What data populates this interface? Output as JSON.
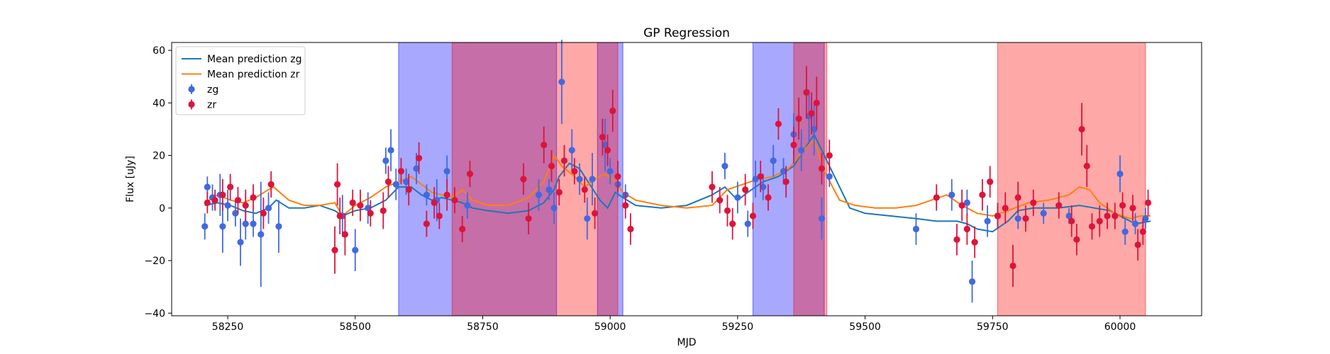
{
  "chart_data": {
    "type": "scatter",
    "title": "GP Regression",
    "xlabel": "MJD",
    "ylabel": "Flux [uJy]",
    "xlim": [
      58140,
      60160
    ],
    "ylim": [
      -41,
      63
    ],
    "x_ticks": [
      58250,
      58500,
      58750,
      59000,
      59250,
      59500,
      59750,
      60000
    ],
    "y_ticks": [
      -40,
      -20,
      0,
      20,
      40,
      60
    ],
    "grid": false,
    "legend_position": "top-left",
    "legend": [
      {
        "label": "Mean prediction zg",
        "kind": "line",
        "color": "#1f77b4"
      },
      {
        "label": "Mean prediction zr",
        "kind": "line",
        "color": "#ff7f0e"
      },
      {
        "label": "zg",
        "kind": "errorbar",
        "color": "#4169e1"
      },
      {
        "label": "zr",
        "kind": "errorbar",
        "color": "#dc143c"
      }
    ],
    "shaded_regions": [
      {
        "band": "zg",
        "color": "#0000ff",
        "opacity": 0.34,
        "x": [
          58585,
          58895
        ]
      },
      {
        "band": "zg",
        "color": "#0000ff",
        "opacity": 0.34,
        "x": [
          58975,
          59025
        ]
      },
      {
        "band": "zg",
        "color": "#0000ff",
        "opacity": 0.34,
        "x": [
          59280,
          59420
        ]
      },
      {
        "band": "zr",
        "color": "#ff0000",
        "opacity": 0.34,
        "x": [
          58690,
          59015
        ]
      },
      {
        "band": "zr",
        "color": "#ff0000",
        "opacity": 0.34,
        "x": [
          59360,
          59425
        ]
      },
      {
        "band": "zr",
        "color": "#ff0000",
        "opacity": 0.34,
        "x": [
          59760,
          60050
        ]
      }
    ],
    "series": [
      {
        "name": "Mean prediction zg",
        "type": "line",
        "color": "#1f77b4",
        "x": [
          58205,
          58230,
          58255,
          58280,
          58305,
          58330,
          58345,
          58370,
          58400,
          58430,
          58460,
          58475,
          58500,
          58530,
          58560,
          58585,
          58610,
          58630,
          58650,
          58670,
          58690,
          58710,
          58730,
          58760,
          58800,
          58840,
          58870,
          58890,
          58900,
          58920,
          58940,
          58960,
          58980,
          58995,
          59010,
          59025,
          59050,
          59100,
          59150,
          59200,
          59225,
          59250,
          59270,
          59300,
          59330,
          59360,
          59380,
          59400,
          59420,
          59440,
          59470,
          59500,
          59550,
          59600,
          59640,
          59680,
          59700,
          59720,
          59750,
          59780,
          59800,
          59830,
          59880,
          59920,
          59950,
          59980,
          60010,
          60030,
          60060
        ],
        "y": [
          1,
          2,
          1,
          -1,
          -2,
          0,
          3,
          0,
          0,
          1,
          -1,
          -3,
          -1,
          0,
          3,
          8,
          8,
          5,
          3,
          4,
          3,
          2,
          0,
          -1,
          -2,
          -1,
          2,
          7,
          12,
          17,
          15,
          9,
          3,
          0,
          6,
          4,
          1,
          0,
          1,
          5,
          8,
          3,
          6,
          10,
          12,
          16,
          22,
          28,
          20,
          12,
          0,
          -2,
          -3,
          -4,
          -5,
          -5,
          -6,
          -8,
          -9,
          -5,
          -1,
          0,
          0,
          1,
          0,
          -1,
          -4,
          -6,
          -5
        ]
      },
      {
        "name": "Mean prediction zr",
        "type": "line",
        "color": "#ff7f0e",
        "x": [
          58205,
          58230,
          58255,
          58280,
          58305,
          58330,
          58340,
          58370,
          58400,
          58430,
          58460,
          58475,
          58500,
          58530,
          58560,
          58585,
          58610,
          58630,
          58650,
          58670,
          58690,
          58710,
          58730,
          58760,
          58800,
          58840,
          58870,
          58890,
          58905,
          58930,
          58950,
          58970,
          58990,
          59010,
          59025,
          59050,
          59100,
          59150,
          59200,
          59230,
          59260,
          59290,
          59320,
          59350,
          59380,
          59400,
          59420,
          59450,
          59480,
          59520,
          59560,
          59600,
          59630,
          59660,
          59690,
          59720,
          59750,
          59780,
          59820,
          59860,
          59900,
          59920,
          59940,
          59960,
          59990,
          60020,
          60040,
          60060
        ],
        "y": [
          2,
          5,
          3,
          2,
          4,
          7,
          8,
          3,
          1,
          1,
          2,
          -3,
          1,
          4,
          8,
          10,
          12,
          9,
          6,
          5,
          4,
          7,
          3,
          1,
          1,
          4,
          10,
          20,
          16,
          12,
          8,
          11,
          13,
          10,
          6,
          3,
          1,
          0,
          1,
          7,
          9,
          11,
          12,
          15,
          22,
          26,
          14,
          3,
          1,
          0,
          0,
          1,
          3,
          5,
          1,
          -2,
          -3,
          -1,
          2,
          3,
          5,
          8,
          7,
          2,
          -2,
          -4,
          -3,
          -3
        ]
      },
      {
        "name": "zg",
        "type": "errorbar",
        "color": "#4169e1",
        "points": [
          [
            58205,
            -7,
            5
          ],
          [
            58210,
            8,
            4
          ],
          [
            58220,
            4,
            5
          ],
          [
            58235,
            5,
            8
          ],
          [
            58240,
            -7,
            10
          ],
          [
            58250,
            1,
            6
          ],
          [
            58265,
            -2,
            5
          ],
          [
            58275,
            -13,
            9
          ],
          [
            58285,
            -6,
            6
          ],
          [
            58300,
            -6,
            5
          ],
          [
            58315,
            -10,
            20
          ],
          [
            58330,
            0,
            6
          ],
          [
            58350,
            -7,
            10
          ],
          [
            58475,
            -3,
            8
          ],
          [
            58500,
            -16,
            8
          ],
          [
            58525,
            0,
            6
          ],
          [
            58560,
            18,
            5
          ],
          [
            58570,
            22,
            8
          ],
          [
            58580,
            9,
            6
          ],
          [
            58600,
            10,
            5
          ],
          [
            58620,
            15,
            6
          ],
          [
            58640,
            5,
            4
          ],
          [
            58660,
            3,
            8
          ],
          [
            58680,
            14,
            6
          ],
          [
            58720,
            1,
            5
          ],
          [
            58860,
            5,
            6
          ],
          [
            58880,
            7,
            4
          ],
          [
            58890,
            0,
            6
          ],
          [
            58905,
            48,
            16
          ],
          [
            58925,
            22,
            8
          ],
          [
            58940,
            11,
            6
          ],
          [
            58955,
            -4,
            8
          ],
          [
            58965,
            11,
            10
          ],
          [
            58990,
            24,
            10
          ],
          [
            59000,
            14,
            5
          ],
          [
            59015,
            9,
            5
          ],
          [
            59030,
            5,
            4
          ],
          [
            59225,
            16,
            5
          ],
          [
            59250,
            4,
            6
          ],
          [
            59270,
            -6,
            5
          ],
          [
            59285,
            11,
            7
          ],
          [
            59300,
            8,
            5
          ],
          [
            59320,
            18,
            6
          ],
          [
            59340,
            14,
            5
          ],
          [
            59360,
            28,
            8
          ],
          [
            59375,
            22,
            8
          ],
          [
            59390,
            35,
            10
          ],
          [
            59400,
            30,
            10
          ],
          [
            59415,
            -4,
            8
          ],
          [
            59430,
            12,
            4
          ],
          [
            59600,
            -8,
            6
          ],
          [
            59670,
            5,
            6
          ],
          [
            59700,
            2,
            5
          ],
          [
            59710,
            -28,
            8
          ],
          [
            59740,
            -5,
            6
          ],
          [
            59760,
            -3,
            4
          ],
          [
            59800,
            -4,
            4
          ],
          [
            59850,
            -2,
            4
          ],
          [
            59900,
            -3,
            3
          ],
          [
            60000,
            13,
            7
          ],
          [
            60010,
            -9,
            5
          ],
          [
            60030,
            -6,
            4
          ],
          [
            60050,
            -4,
            4
          ]
        ]
      },
      {
        "name": "zr",
        "type": "errorbar",
        "color": "#dc143c",
        "points": [
          [
            58210,
            2,
            4
          ],
          [
            58225,
            3,
            4
          ],
          [
            58240,
            5,
            6
          ],
          [
            58255,
            8,
            5
          ],
          [
            58270,
            3,
            5
          ],
          [
            58285,
            1,
            6
          ],
          [
            58300,
            4,
            5
          ],
          [
            58320,
            -2,
            6
          ],
          [
            58335,
            9,
            5
          ],
          [
            58460,
            -16,
            9
          ],
          [
            58465,
            9,
            8
          ],
          [
            58470,
            -3,
            7
          ],
          [
            58480,
            -10,
            8
          ],
          [
            58495,
            2,
            5
          ],
          [
            58510,
            1,
            6
          ],
          [
            58530,
            -2,
            5
          ],
          [
            58555,
            -1,
            7
          ],
          [
            58565,
            10,
            6
          ],
          [
            58590,
            14,
            5
          ],
          [
            58605,
            7,
            6
          ],
          [
            58625,
            19,
            6
          ],
          [
            58640,
            -6,
            5
          ],
          [
            58655,
            2,
            6
          ],
          [
            58665,
            -3,
            5
          ],
          [
            58680,
            5,
            6
          ],
          [
            58695,
            3,
            5
          ],
          [
            58710,
            -8,
            5
          ],
          [
            58725,
            13,
            5
          ],
          [
            58830,
            11,
            6
          ],
          [
            58840,
            -4,
            6
          ],
          [
            58870,
            24,
            7
          ],
          [
            58885,
            16,
            6
          ],
          [
            58900,
            6,
            5
          ],
          [
            58910,
            18,
            6
          ],
          [
            58930,
            14,
            5
          ],
          [
            58950,
            7,
            5
          ],
          [
            58970,
            -2,
            6
          ],
          [
            58985,
            27,
            7
          ],
          [
            58995,
            22,
            6
          ],
          [
            59005,
            37,
            8
          ],
          [
            59015,
            12,
            6
          ],
          [
            59030,
            1,
            5
          ],
          [
            59040,
            -8,
            6
          ],
          [
            59200,
            8,
            6
          ],
          [
            59215,
            3,
            5
          ],
          [
            59230,
            -1,
            6
          ],
          [
            59240,
            -6,
            6
          ],
          [
            59265,
            7,
            6
          ],
          [
            59280,
            -3,
            5
          ],
          [
            59295,
            12,
            6
          ],
          [
            59310,
            4,
            5
          ],
          [
            59330,
            32,
            6
          ],
          [
            59345,
            10,
            6
          ],
          [
            59360,
            24,
            7
          ],
          [
            59370,
            34,
            8
          ],
          [
            59385,
            44,
            10
          ],
          [
            59395,
            36,
            8
          ],
          [
            59405,
            40,
            10
          ],
          [
            59415,
            15,
            6
          ],
          [
            59430,
            20,
            6
          ],
          [
            59640,
            4,
            5
          ],
          [
            59680,
            -12,
            6
          ],
          [
            59690,
            1,
            6
          ],
          [
            59700,
            -8,
            6
          ],
          [
            59715,
            -13,
            6
          ],
          [
            59730,
            5,
            6
          ],
          [
            59745,
            10,
            6
          ],
          [
            59760,
            -3,
            5
          ],
          [
            59775,
            0,
            6
          ],
          [
            59790,
            -22,
            8
          ],
          [
            59800,
            4,
            6
          ],
          [
            59815,
            -4,
            5
          ],
          [
            59830,
            2,
            5
          ],
          [
            59880,
            1,
            5
          ],
          [
            59905,
            -5,
            6
          ],
          [
            59915,
            -12,
            6
          ],
          [
            59925,
            30,
            10
          ],
          [
            59935,
            16,
            8
          ],
          [
            59945,
            -7,
            5
          ],
          [
            59960,
            -5,
            6
          ],
          [
            59975,
            -3,
            5
          ],
          [
            59990,
            -3,
            5
          ],
          [
            60005,
            1,
            5
          ],
          [
            60025,
            0,
            5
          ],
          [
            60035,
            -14,
            6
          ],
          [
            60045,
            -9,
            5
          ],
          [
            60055,
            2,
            5
          ]
        ]
      }
    ]
  }
}
